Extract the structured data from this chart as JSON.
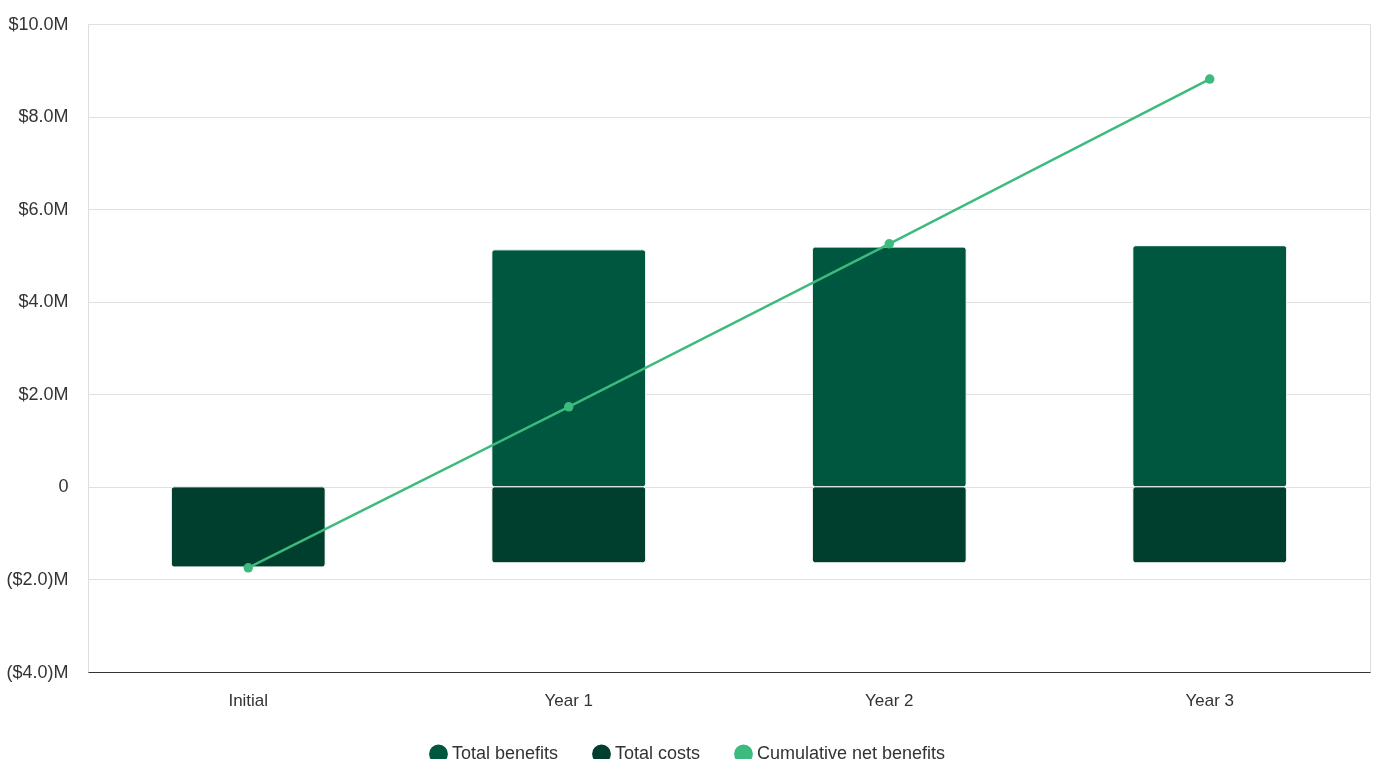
{
  "chart_data": {
    "type": "bar",
    "categories": [
      "Initial",
      "Year 1",
      "Year 2",
      "Year 3"
    ],
    "stacked": true,
    "series": [
      {
        "name": "Total benefits",
        "color": "#00573f",
        "values": [
          null,
          5.12,
          5.18,
          5.21
        ]
      },
      {
        "name": "Total costs",
        "color": "#003f2d",
        "values": [
          -1.73,
          -1.64,
          -1.64,
          -1.64
        ]
      },
      {
        "name": "Cumulative net benefits",
        "type": "line",
        "color": "#3dba7e",
        "values": [
          -1.75,
          1.73,
          5.25,
          8.81
        ]
      }
    ],
    "ylim": [
      -4,
      10
    ],
    "yticks": [
      {
        "value": -4,
        "label": "($4.0)M"
      },
      {
        "value": -2,
        "label": "($2.0)M"
      },
      0,
      {
        "value": 2,
        "label": "$2.0M"
      },
      {
        "value": 4,
        "label": "$4.0M"
      },
      {
        "value": 6,
        "label": "$6.0M"
      },
      {
        "value": 8,
        "label": "$8.0M"
      },
      {
        "value": 10,
        "label": "$10.0M"
      }
    ],
    "grid": "y",
    "legend": "bottom",
    "marker": "circle",
    "line_style": "solid"
  }
}
